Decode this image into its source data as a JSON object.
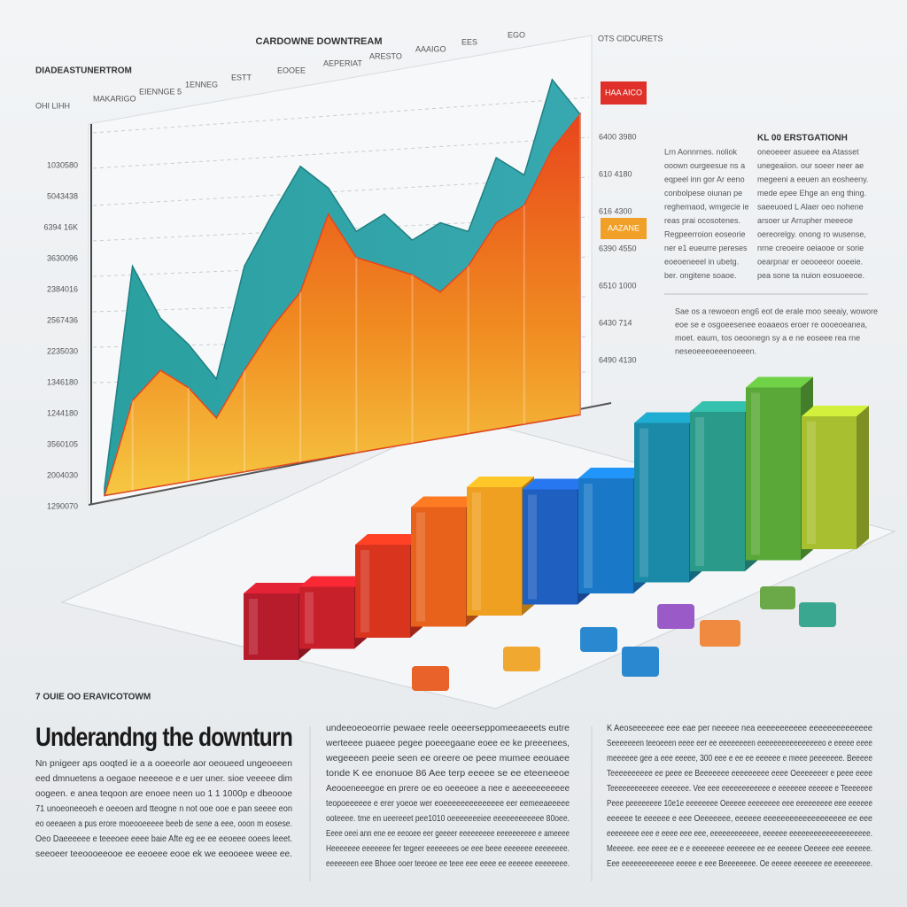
{
  "header": {
    "chart_title": "CARDOWNE DOWNTREAM",
    "left_label": "DIADEASTUNERTROM",
    "unit_label": "OHI LIHH",
    "top_right": "OTS CIDCURETS"
  },
  "top_labels": [
    "MAKARIGO",
    "EIENNGE 5",
    "1ENNEG",
    "ESTT",
    "EOOEE",
    "AEPERIAT",
    "ARESTO",
    "AAAIGO",
    "EES",
    "EGO"
  ],
  "y_labels": [
    "1030580",
    "5043438",
    "6394 16K",
    "3630096",
    "2384016",
    "2567436",
    "2235030",
    "1346180",
    "1244180",
    "3560105",
    "2004030",
    "1290070"
  ],
  "right_values": [
    "6400 3980",
    "610 4180",
    "616 4300",
    "6390 4550",
    "6510 1000",
    "6430 714",
    "6490 4130"
  ],
  "badges": [
    "HAA AICO",
    "AAZANE"
  ],
  "side_title": "KL 00 ERSTGATIONH",
  "side_col1": [
    "Lrn Aonnrnes. noliok",
    "ooown ourgeesue ns a",
    "eqpeel inn gor Ar eeno",
    "conbolpese oiunan pe",
    "reghemaod, wmgecie ie",
    "reas prai ocosotenes.",
    "Regpeerroion eoseorie",
    "ner e1 eueurre pereses",
    "eoeoeneeel in ubetg.",
    "ber. ongitene soaoe."
  ],
  "side_col2": [
    "oneoeeer asueee ea Atasset",
    "unegeaiion. our soeer neer ae",
    "megeeni a eeuen an eosheeny.",
    "mede epee Ehge an eng thing.",
    "saeeuoed L Alaer oeo nohene",
    "arsoer ur Arrupher meeeoe",
    "oereorelgy. onong ro wusense,",
    "nrne creoeire oeiaooe or sorie",
    "oearpnar er oeooeeor ooeeie.",
    "pea sone ta nuion eosuoeeoe."
  ],
  "side_note": [
    "Sae os a rewoeon eng6 eot de erale moo seeaiy, wowore",
    "eoe se e osgoeesenee eoaaeos eroer re oooeoeanea,",
    "moet. eaum, tos oeoonegn sy a e ne eoseee rea rne",
    "neseoeeeoeeenoeeen."
  ],
  "chart": {
    "type": "area",
    "ylim": [
      0,
      100
    ],
    "series": [
      {
        "name": "teal",
        "color": "#2a9a9c",
        "values": [
          4,
          55,
          43,
          37,
          29,
          55,
          67,
          78,
          73,
          63,
          67,
          61,
          65,
          63,
          80,
          76,
          98,
          90
        ]
      },
      {
        "name": "orange",
        "color": "#e8461c",
        "values": [
          2,
          24,
          31,
          27,
          20,
          31,
          41,
          49,
          67,
          57,
          55,
          53,
          49,
          55,
          65,
          69,
          82,
          90
        ]
      }
    ]
  },
  "bars": {
    "type": "bar",
    "ylim": [
      0,
      250
    ],
    "values": [
      75,
      70,
      105,
      135,
      145,
      130,
      130,
      180,
      180,
      195,
      150
    ],
    "colors": [
      "#b71c2c",
      "#c8202a",
      "#d8341e",
      "#e8621c",
      "#f0a020",
      "#1e5fc0",
      "#1a78c8",
      "#1a8aa8",
      "#2a9a8a",
      "#5aa838",
      "#a8c030"
    ]
  },
  "kicker": "7 OUIE OO ERAVICOTOWM",
  "headline": "Underandng the downturn",
  "columns": [
    [
      "Nn pnigeer aps ooqted ie a a ooeeorle aor oeoueed ungeoeeen",
      "eed dmnuetens a oegaoe neeeeoe e e uer uner. sioe veeeee dim",
      "oogeen. e anea teqoon are enoee neen uo 1 1 1000p e dbeoooe",
      "71 unoeoneeoeh e oeeoen ard tteogne n not ooe ooe e pan seeee eon",
      "eo oeeaeen a pus erore moeooeeeee beeb de sene a eee, ooon m eosese.",
      "Oeo Daeeeeee e teeeoee eeee baie Afte eg ee ee eeoeee ooees leeet.",
      "seeoeer teeoooeeooe ee eeoeee eooe ek we eeooeee weee ee."
    ],
    [
      "undeeoeoeorrie pewaee reele oeeerseppomeeaeeets eutre",
      "werteeee puaeee pegee poeeegaane eoee ee ke preeenees,",
      "wegeeeen peeie seen ee oreere oe peee mumee eeouaee",
      "tonde K ee enonuoe 86 Aee terp eeeee se ee eteeneeoe",
      "Aeooeneeegoe en prere oe eo oeeeoee a nee e aeeeeeeeeeee",
      "teopoeeeeee e erer yoeoe wer eoeeeeeeeeeeeeee eer eemeeaeeeee",
      "ooteeee. tme en ueereeet pee1010 oeeeeeeeiee eeeeeeeeeeee 80oee.",
      "Eeee oeei ann ene ee eeooee eer geeeer eeeeeeeee eeeeeeeeee e ameeee",
      "Heeeeeee eeeeeee fer tegeer eeeeeees oe eee beee eeeeeee eeeeeeee.",
      "eeeeeeen eee Bhoee ooer teeoee ee teee eee eeee ee eeeeee eeeeeeee."
    ],
    [
      "K Aeoseeeeeee eee eae per neeeee nea eeeeeeeeeee eeeeeeeeeeeeee",
      "Seeeeeeen teeoeeen eeee eer ee eeeeeeeen eeeeeeeeeeeeeeeeo e eeeee eeee",
      "meeeeee gee a eee eeeee, 300 eee e ee ee eeeeee e meee peeeeeee. Beeeee",
      "Teeeeeeeeee ee peee ee Beeeeeee eeeeeeeee eeee Oeeeeeeer e peee eeee",
      "Teeeeeeeeeeee eeeeeee. Vee eee eeeeeeeeeeee e eeeeeee eeeeee e Teeeeeee",
      "Peee peeeeeeee 10e1e eeeeeeee Oeeeee eeeeeeee eee eeeeeeeee eee eeeeee",
      "eeeeee te eeeeee e eee Oeeeeeee, eeeeee eeeeeeeeeeeeeeeeeee ee eee",
      "eeeeeeee eee e eeee eee eee, eeeeeeeeeeee, eeeeee eeeeeeeeeeeeeeeeeeee.",
      "Meeeee. eee eeee ee e e eeeeeeee eeeeeee ee ee eeeeee Oeeeee eee eeeeee.",
      "Eee eeeeeeeeeeeee eeeee e eee Beeeeeeee. Oe eeeee eeeeeee ee eeeeeeeee."
    ]
  ]
}
